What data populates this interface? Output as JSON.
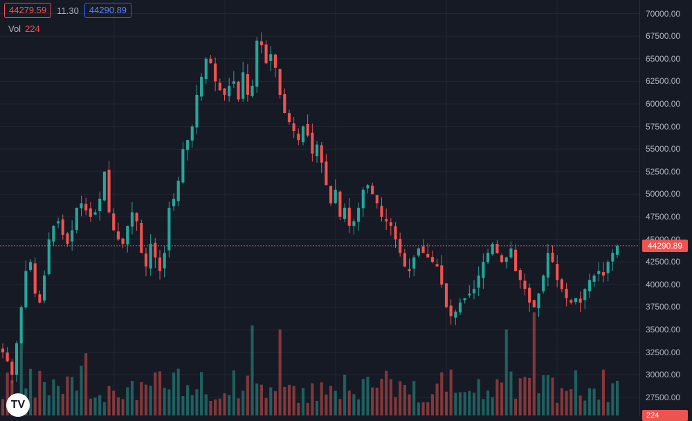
{
  "legend": {
    "bid": "44279.59",
    "spread": "11.30",
    "ask": "44290.89",
    "vol_label": "Vol",
    "vol_value": "224"
  },
  "current_price_label": "44290.89",
  "volume_badge_label": "224",
  "logo_text": "TV",
  "colors": {
    "background": "#161a25",
    "grid": "#232733",
    "up": "#26a69a",
    "down": "#ef5350",
    "ask_box": "#2962ff"
  },
  "chart_data": {
    "type": "candlestick",
    "title": "",
    "y_ticks": [
      "70000.00",
      "67500.00",
      "65000.00",
      "62500.00",
      "60000.00",
      "57500.00",
      "55000.00",
      "52500.00",
      "50000.00",
      "47500.00",
      "45000.00",
      "42500.00",
      "40000.00",
      "37500.00",
      "35000.00",
      "32500.00",
      "30000.00",
      "27500.00"
    ],
    "ylim": [
      25500,
      71500
    ],
    "current_price": 44290.89,
    "grid": true,
    "close_path": [
      32500,
      31500,
      30000,
      33500,
      37500,
      41500,
      42500,
      39000,
      38000,
      41000,
      45000,
      46500,
      47000,
      45500,
      44500,
      46000,
      48500,
      49000,
      48200,
      47500,
      48000,
      49500,
      52500,
      48000,
      46000,
      45000,
      44500,
      46500,
      48000,
      47000,
      43500,
      42000,
      44500,
      43000,
      41500,
      43500,
      48500,
      49500,
      51500,
      55000,
      56000,
      57500,
      61000,
      63000,
      65000,
      64500,
      62500,
      61500,
      61000,
      62000,
      62500,
      60500,
      63500,
      61000,
      62000,
      67000,
      66500,
      64500,
      65500,
      64000,
      61000,
      59000,
      58000,
      57000,
      56000,
      57500,
      56500,
      54500,
      55500,
      53500,
      51000,
      49000,
      50500,
      47500,
      48500,
      46500,
      47000,
      48500,
      50500,
      51000,
      50000,
      49000,
      47500,
      47000,
      46500,
      45000,
      43500,
      42000,
      41500,
      43000,
      44000,
      43500,
      43000,
      42500,
      42000,
      40000,
      37500,
      36500,
      37000,
      38000,
      38500,
      39000,
      39500,
      41000,
      42500,
      43500,
      44500,
      43500,
      42500,
      43000,
      44000,
      41500,
      40500,
      39500,
      38000,
      37500,
      39000,
      41000,
      43500,
      42500,
      40500,
      39500,
      38500,
      38000,
      38500,
      38000,
      39500,
      40500,
      41000,
      41500,
      41000,
      42500,
      43500,
      44290
    ],
    "volume_axis_max_label": "224"
  }
}
